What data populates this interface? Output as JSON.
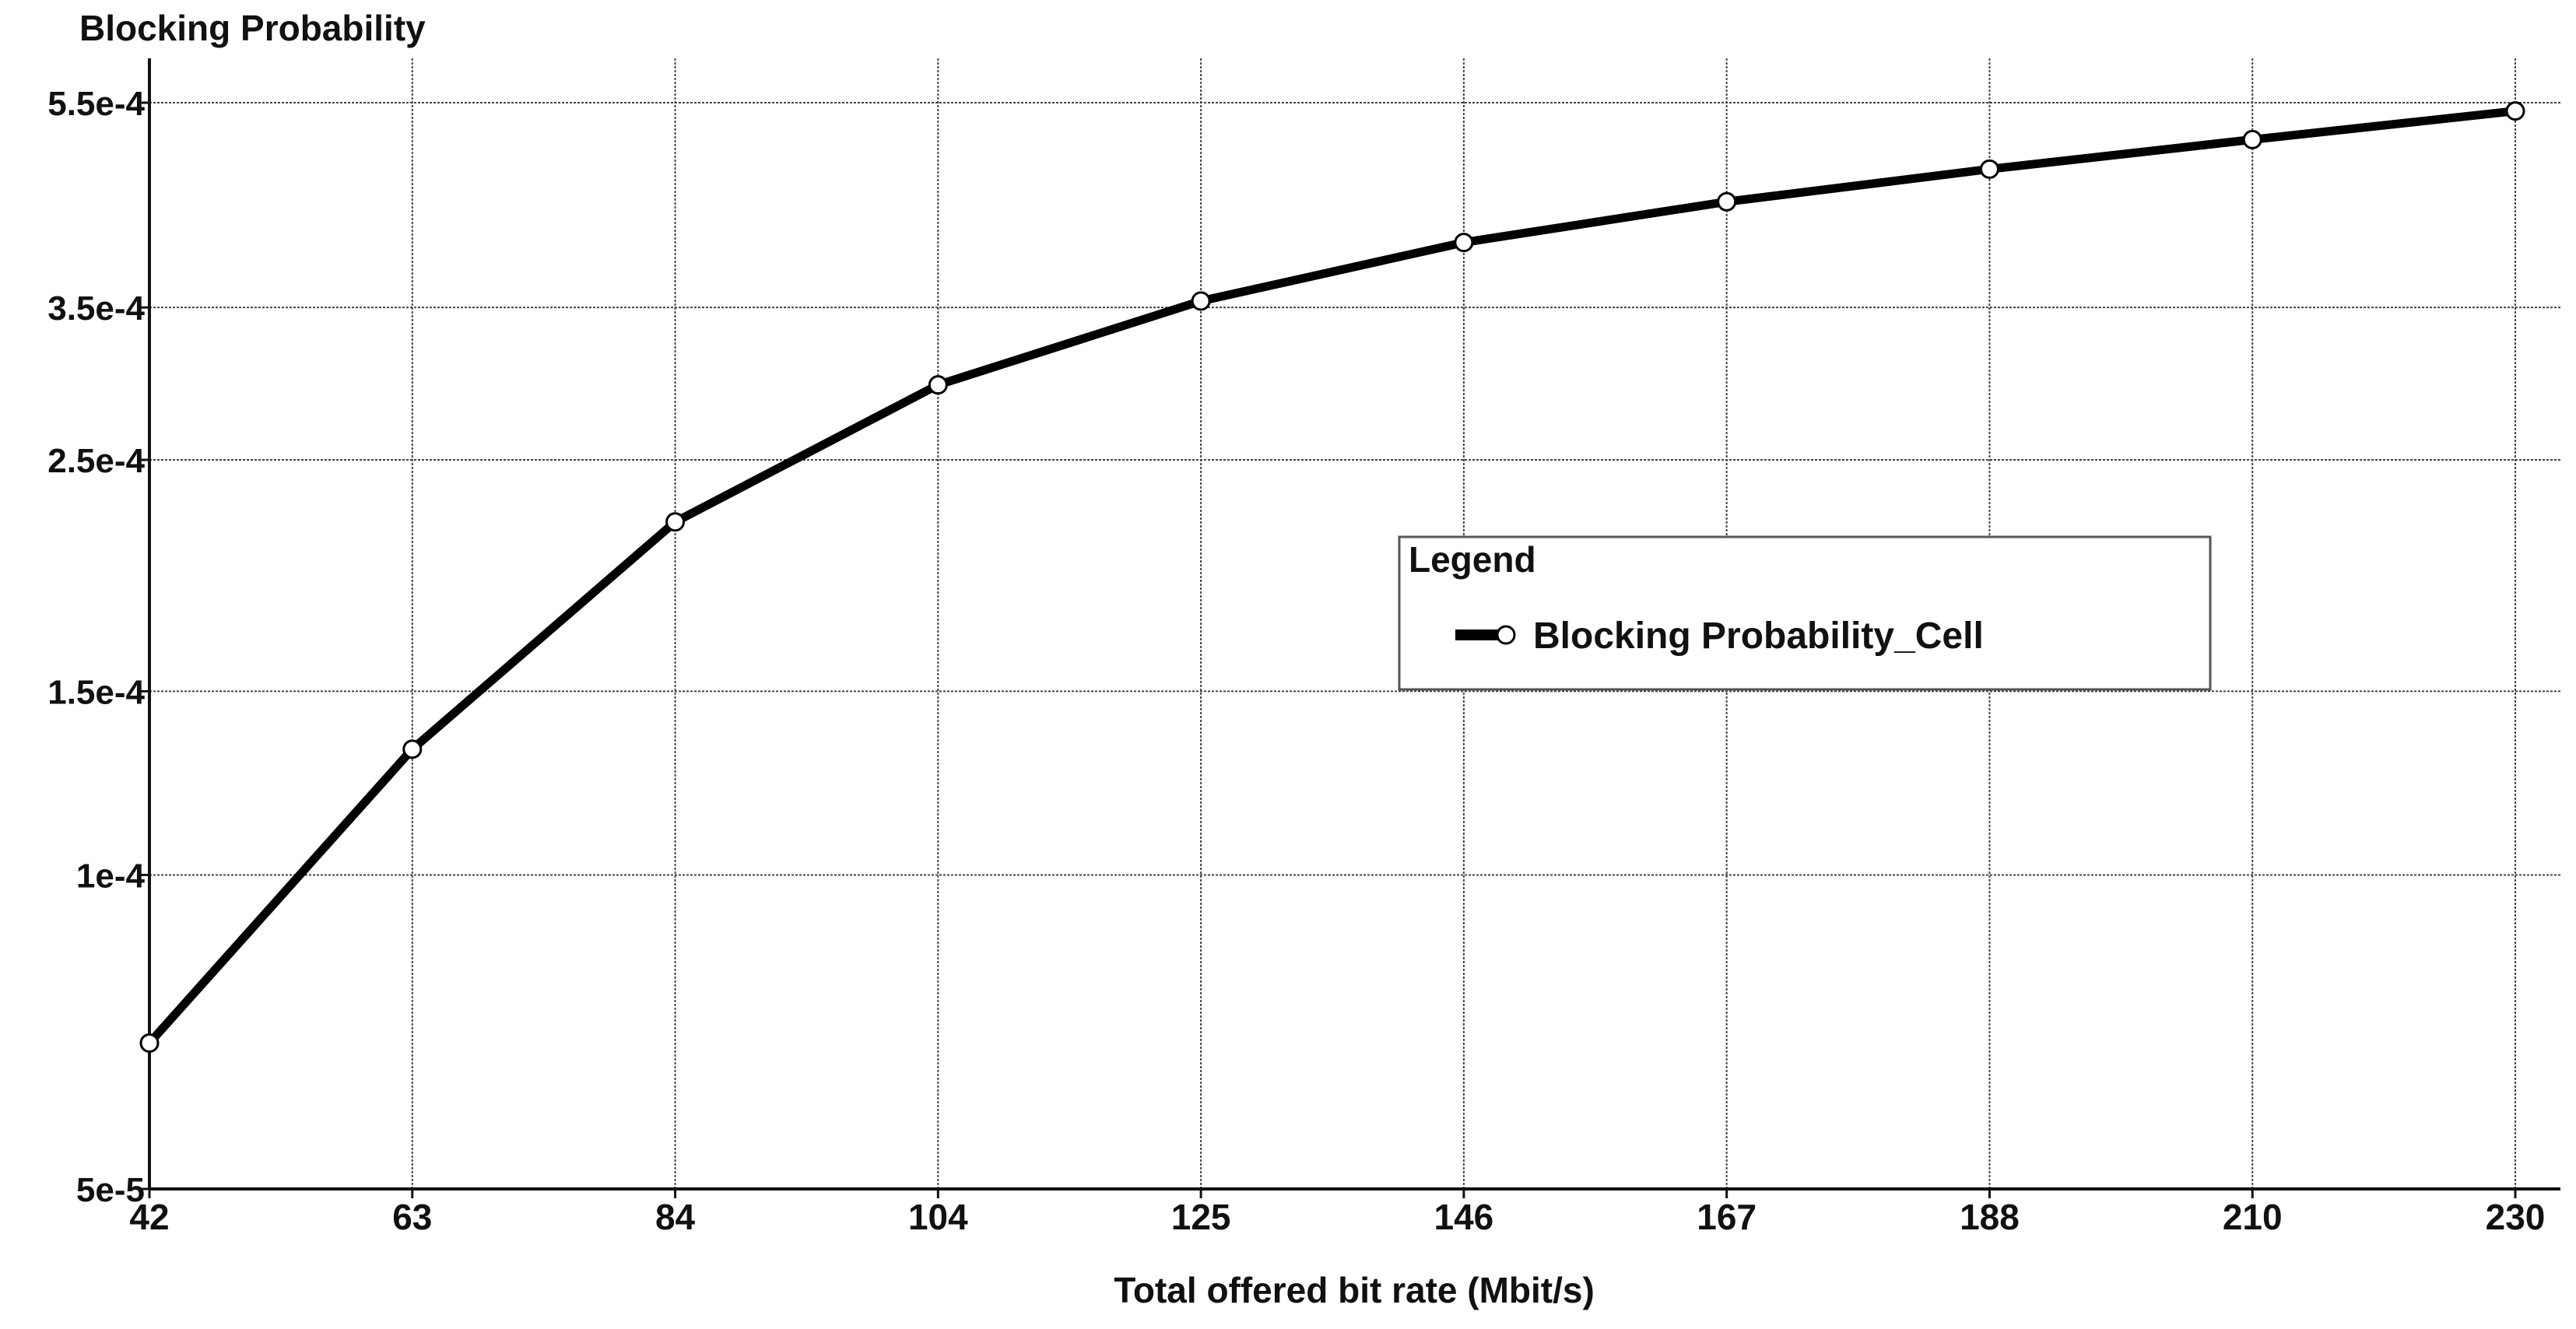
{
  "chart_data": {
    "type": "line",
    "title": "",
    "ylabel": "Blocking Probability",
    "xlabel": "Total offered bit rate (Mbit/s)",
    "y_scale": "log",
    "ylim": [
      5e-05,
      0.00058
    ],
    "y_ticks": [
      {
        "value": 5e-05,
        "label": "5e-5"
      },
      {
        "value": 0.0001,
        "label": "1e-4"
      },
      {
        "value": 0.00015,
        "label": "1.5e-4"
      },
      {
        "value": 0.00025,
        "label": "2.5e-4"
      },
      {
        "value": 0.00035,
        "label": "3.5e-4"
      },
      {
        "value": 0.00055,
        "label": "5.5e-4"
      }
    ],
    "categories": [
      "42",
      "63",
      "84",
      "104",
      "125",
      "146",
      "167",
      "188",
      "210",
      "230"
    ],
    "grid": true,
    "legend": {
      "title": "Legend",
      "placement": "center-right"
    },
    "series": [
      {
        "name": "Blocking Probability_Cell",
        "color": "#000000",
        "marker": "open-circle",
        "values": [
          6.9e-05,
          0.000132,
          0.000218,
          0.000295,
          0.000355,
          0.000404,
          0.000442,
          0.000475,
          0.000507,
          0.00054
        ]
      }
    ]
  }
}
